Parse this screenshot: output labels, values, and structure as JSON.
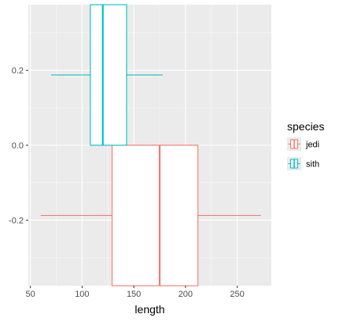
{
  "chart_data": {
    "type": "boxplot",
    "orientation": "horizontal",
    "xlabel": "length",
    "ylabel": "",
    "xlim": [
      48,
      283
    ],
    "ylim": [
      -0.375,
      0.375
    ],
    "x_ticks": [
      50,
      100,
      150,
      200,
      250
    ],
    "x_tick_labels": [
      "50",
      "100",
      "150",
      "200",
      "250"
    ],
    "y_ticks": [
      -0.2,
      0.0,
      0.2
    ],
    "y_tick_labels": [
      "-0.2",
      "0.0",
      "0.2"
    ],
    "grid": true,
    "legend": {
      "title": "species",
      "position": "right",
      "entries": [
        "jedi",
        "sith"
      ]
    },
    "series": [
      {
        "name": "jedi",
        "color": "#F8766D",
        "center": -0.1875,
        "half_width": 0.1875,
        "whisker_low": 60,
        "q1": 129,
        "median": 175,
        "q3": 212,
        "whisker_high": 273
      },
      {
        "name": "sith",
        "color": "#00BFC4",
        "center": 0.1875,
        "half_width": 0.1875,
        "whisker_low": 70,
        "q1": 108,
        "median": 120,
        "q3": 143,
        "whisker_high": 178
      }
    ]
  }
}
